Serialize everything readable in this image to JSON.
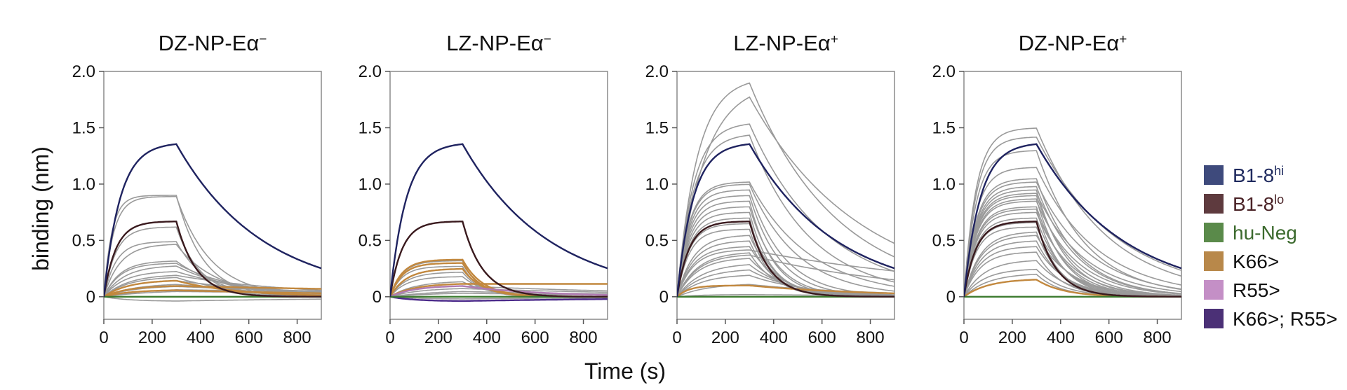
{
  "figure": {
    "ylabel": "binding (nm)",
    "xlabel": "Time (s)"
  },
  "chart_data": [
    {
      "type": "line",
      "title_main": "DZ-NP-Eα",
      "title_sup": "−",
      "xlim": [
        0,
        900
      ],
      "ylim": [
        -0.2,
        2.0
      ],
      "xticks": [
        "0",
        "200",
        "400",
        "600",
        "800"
      ],
      "yticks": [
        "0",
        "0.5",
        "1.0",
        "1.5",
        "2.0"
      ],
      "association_end_s": 300,
      "traces": [
        {
          "group": "B1-8hi",
          "plateau": 1.37,
          "kon": 0.015,
          "koff": 0.0028
        },
        {
          "group": "B1-8lo",
          "plateau": 0.67,
          "kon": 0.02,
          "koff": 0.012
        },
        {
          "group": "K66>",
          "plateau": 0.15,
          "kon": 0.01,
          "koff": 0.004
        },
        {
          "group": "K66>",
          "plateau": 0.1,
          "kon": 0.01,
          "koff": 0.0005
        },
        {
          "group": "K66>",
          "plateau": 0.06,
          "kon": 0.01,
          "koff": 0.001
        },
        {
          "group": "hu-Neg",
          "plateau": 0.0,
          "kon": 0.01,
          "koff": 0.001
        },
        {
          "group": "other",
          "plateau": 0.9,
          "kon": 0.03,
          "koff": 0.009
        },
        {
          "group": "other",
          "plateau": 0.89,
          "kon": 0.025,
          "koff": 0.007
        },
        {
          "group": "other",
          "plateau": 0.62,
          "kon": 0.02,
          "koff": 0.01
        },
        {
          "group": "other",
          "plateau": 0.49,
          "kon": 0.02,
          "koff": 0.008
        },
        {
          "group": "other",
          "plateau": 0.47,
          "kon": 0.015,
          "koff": 0.006
        },
        {
          "group": "other",
          "plateau": 0.32,
          "kon": 0.015,
          "koff": 0.005
        },
        {
          "group": "other",
          "plateau": 0.3,
          "kon": 0.015,
          "koff": 0.004
        },
        {
          "group": "other",
          "plateau": 0.28,
          "kon": 0.012,
          "koff": 0.004
        },
        {
          "group": "other",
          "plateau": 0.23,
          "kon": 0.012,
          "koff": 0.003
        },
        {
          "group": "other",
          "plateau": 0.2,
          "kon": 0.01,
          "koff": 0.002
        },
        {
          "group": "other",
          "plateau": 0.18,
          "kon": 0.01,
          "koff": 0.004
        },
        {
          "group": "other",
          "plateau": 0.15,
          "kon": 0.01,
          "koff": 0.002
        },
        {
          "group": "other",
          "plateau": 0.12,
          "kon": 0.008,
          "koff": 0.0015
        },
        {
          "group": "other",
          "plateau": 0.1,
          "kon": 0.008,
          "koff": 0.001
        },
        {
          "group": "other",
          "plateau": 0.08,
          "kon": 0.005,
          "koff": 0.0005
        },
        {
          "group": "other",
          "plateau": 0.06,
          "kon": 0.005,
          "koff": 0.0005
        },
        {
          "group": "other",
          "plateau": -0.04,
          "kon": 0.01,
          "koff": 0.001
        }
      ]
    },
    {
      "type": "line",
      "title_main": "LZ-NP-Eα",
      "title_sup": "−",
      "xlim": [
        0,
        900
      ],
      "ylim": [
        -0.2,
        2.0
      ],
      "xticks": [
        "0",
        "200",
        "400",
        "600",
        "800"
      ],
      "yticks": [
        "0",
        "0.5",
        "1.0",
        "1.5",
        "2.0"
      ],
      "association_end_s": 300,
      "traces": [
        {
          "group": "B1-8hi",
          "plateau": 1.37,
          "kon": 0.015,
          "koff": 0.0028
        },
        {
          "group": "B1-8lo",
          "plateau": 0.67,
          "kon": 0.02,
          "koff": 0.012
        },
        {
          "group": "K66>",
          "plateau": 0.33,
          "kon": 0.02,
          "koff": 0.012
        },
        {
          "group": "K66>",
          "plateau": 0.3,
          "kon": 0.02,
          "koff": 0.013
        },
        {
          "group": "K66>",
          "plateau": 0.25,
          "kon": 0.015,
          "koff": 0.012
        },
        {
          "group": "K66>",
          "plateau": 0.12,
          "kon": 0.01,
          "koff": 0.0
        },
        {
          "group": "R55>",
          "plateau": 0.1,
          "kon": 0.01,
          "koff": 0.003
        },
        {
          "group": "K66>; R55>",
          "plateau": -0.04,
          "kon": 0.01,
          "koff": 0.001
        },
        {
          "group": "hu-Neg",
          "plateau": 0.0,
          "kon": 0.01,
          "koff": 0.001
        },
        {
          "group": "other",
          "plateau": 0.32,
          "kon": 0.02,
          "koff": 0.015
        },
        {
          "group": "other",
          "plateau": 0.27,
          "kon": 0.02,
          "koff": 0.014
        },
        {
          "group": "other",
          "plateau": 0.22,
          "kon": 0.015,
          "koff": 0.012
        },
        {
          "group": "other",
          "plateau": 0.18,
          "kon": 0.015,
          "koff": 0.01
        },
        {
          "group": "other",
          "plateau": 0.14,
          "kon": 0.01,
          "koff": 0.008
        },
        {
          "group": "other",
          "plateau": 0.1,
          "kon": 0.01,
          "koff": 0.001
        },
        {
          "group": "other",
          "plateau": 0.08,
          "kon": 0.008,
          "koff": 0.001
        },
        {
          "group": "other",
          "plateau": 0.06,
          "kon": 0.005,
          "koff": 0.001
        },
        {
          "group": "other",
          "plateau": 0.04,
          "kon": 0.005,
          "koff": 0.001
        },
        {
          "group": "other",
          "plateau": -0.02,
          "kon": 0.01,
          "koff": 0.001
        }
      ]
    },
    {
      "type": "line",
      "title_main": "LZ-NP-Eα",
      "title_sup": "+",
      "xlim": [
        0,
        900
      ],
      "ylim": [
        -0.2,
        2.0
      ],
      "xticks": [
        "0",
        "200",
        "400",
        "600",
        "800"
      ],
      "yticks": [
        "0",
        "0.5",
        "1.0",
        "1.5",
        "2.0"
      ],
      "association_end_s": 300,
      "traces": [
        {
          "group": "B1-8hi",
          "plateau": 1.37,
          "kon": 0.015,
          "koff": 0.0028
        },
        {
          "group": "B1-8lo",
          "plateau": 0.67,
          "kon": 0.02,
          "koff": 0.012
        },
        {
          "group": "K66>",
          "plateau": 0.1,
          "kon": 0.02,
          "koff": 0.002
        },
        {
          "group": "hu-Neg",
          "plateau": 0.0,
          "kon": 0.01,
          "koff": 0.001
        },
        {
          "group": "other",
          "plateau": 1.95,
          "kon": 0.012,
          "koff": 0.0028
        },
        {
          "group": "other",
          "plateau": 1.9,
          "kon": 0.009,
          "koff": 0.0022
        },
        {
          "group": "other",
          "plateau": 1.55,
          "kon": 0.015,
          "koff": 0.0032
        },
        {
          "group": "other",
          "plateau": 1.45,
          "kon": 0.015,
          "koff": 0.004
        },
        {
          "group": "other",
          "plateau": 1.02,
          "kon": 0.02,
          "koff": 0.004
        },
        {
          "group": "other",
          "plateau": 1.0,
          "kon": 0.02,
          "koff": 0.005
        },
        {
          "group": "other",
          "plateau": 0.95,
          "kon": 0.02,
          "koff": 0.007
        },
        {
          "group": "other",
          "plateau": 0.9,
          "kon": 0.02,
          "koff": 0.008
        },
        {
          "group": "other",
          "plateau": 0.85,
          "kon": 0.02,
          "koff": 0.01
        },
        {
          "group": "other",
          "plateau": 0.8,
          "kon": 0.02,
          "koff": 0.009
        },
        {
          "group": "other",
          "plateau": 0.75,
          "kon": 0.02,
          "koff": 0.011
        },
        {
          "group": "other",
          "plateau": 0.7,
          "kon": 0.02,
          "koff": 0.012
        },
        {
          "group": "other",
          "plateau": 0.65,
          "kon": 0.02,
          "koff": 0.01
        },
        {
          "group": "other",
          "plateau": 0.6,
          "kon": 0.02,
          "koff": 0.012
        },
        {
          "group": "other",
          "plateau": 0.55,
          "kon": 0.015,
          "koff": 0.009
        },
        {
          "group": "other",
          "plateau": 0.5,
          "kon": 0.015,
          "koff": 0.01
        },
        {
          "group": "other",
          "plateau": 0.45,
          "kon": 0.015,
          "koff": 0.008
        },
        {
          "group": "other",
          "plateau": 0.42,
          "kon": 0.015,
          "koff": 0.001
        },
        {
          "group": "other",
          "plateau": 0.4,
          "kon": 0.012,
          "koff": 0.009
        },
        {
          "group": "other",
          "plateau": 0.38,
          "kon": 0.012,
          "koff": 0.0015
        },
        {
          "group": "other",
          "plateau": 0.35,
          "kon": 0.012,
          "koff": 0.007
        },
        {
          "group": "other",
          "plateau": 0.3,
          "kon": 0.01,
          "koff": 0.006
        },
        {
          "group": "other",
          "plateau": 0.25,
          "kon": 0.01,
          "koff": 0.005
        },
        {
          "group": "other",
          "plateau": 0.2,
          "kon": 0.01,
          "koff": 0.004
        },
        {
          "group": "other",
          "plateau": 0.12,
          "kon": 0.008,
          "koff": 0.002
        },
        {
          "group": "other",
          "plateau": 0.02,
          "kon": 0.01,
          "koff": 0.001
        }
      ]
    },
    {
      "type": "line",
      "title_main": "DZ-NP-Eα",
      "title_sup": "+",
      "xlim": [
        0,
        900
      ],
      "ylim": [
        -0.2,
        2.0
      ],
      "xticks": [
        "0",
        "200",
        "400",
        "600",
        "800"
      ],
      "yticks": [
        "0",
        "0.5",
        "1.0",
        "1.5",
        "2.0"
      ],
      "association_end_s": 300,
      "traces": [
        {
          "group": "B1-8hi",
          "plateau": 1.37,
          "kon": 0.015,
          "koff": 0.0028
        },
        {
          "group": "B1-8lo",
          "plateau": 0.67,
          "kon": 0.02,
          "koff": 0.012
        },
        {
          "group": "K66>",
          "plateau": 0.16,
          "kon": 0.01,
          "koff": 0.009
        },
        {
          "group": "hu-Neg",
          "plateau": 0.0,
          "kon": 0.01,
          "koff": 0.001
        },
        {
          "group": "other",
          "plateau": 1.5,
          "kon": 0.02,
          "koff": 0.0035
        },
        {
          "group": "other",
          "plateau": 1.42,
          "kon": 0.02,
          "koff": 0.003
        },
        {
          "group": "other",
          "plateau": 1.3,
          "kon": 0.02,
          "koff": 0.005
        },
        {
          "group": "other",
          "plateau": 1.15,
          "kon": 0.02,
          "koff": 0.004
        },
        {
          "group": "other",
          "plateau": 1.05,
          "kon": 0.02,
          "koff": 0.006
        },
        {
          "group": "other",
          "plateau": 1.02,
          "kon": 0.02,
          "koff": 0.0045
        },
        {
          "group": "other",
          "plateau": 0.98,
          "kon": 0.02,
          "koff": 0.006
        },
        {
          "group": "other",
          "plateau": 0.95,
          "kon": 0.02,
          "koff": 0.008
        },
        {
          "group": "other",
          "plateau": 0.92,
          "kon": 0.02,
          "koff": 0.005
        },
        {
          "group": "other",
          "plateau": 0.9,
          "kon": 0.02,
          "koff": 0.007
        },
        {
          "group": "other",
          "plateau": 0.87,
          "kon": 0.02,
          "koff": 0.009
        },
        {
          "group": "other",
          "plateau": 0.85,
          "kon": 0.02,
          "koff": 0.006
        },
        {
          "group": "other",
          "plateau": 0.8,
          "kon": 0.02,
          "koff": 0.008
        },
        {
          "group": "other",
          "plateau": 0.78,
          "kon": 0.02,
          "koff": 0.01
        },
        {
          "group": "other",
          "plateau": 0.75,
          "kon": 0.02,
          "koff": 0.007
        },
        {
          "group": "other",
          "plateau": 0.7,
          "kon": 0.02,
          "koff": 0.009
        },
        {
          "group": "other",
          "plateau": 0.66,
          "kon": 0.02,
          "koff": 0.011
        },
        {
          "group": "other",
          "plateau": 0.62,
          "kon": 0.02,
          "koff": 0.008
        },
        {
          "group": "other",
          "plateau": 0.58,
          "kon": 0.015,
          "koff": 0.01
        },
        {
          "group": "other",
          "plateau": 0.55,
          "kon": 0.015,
          "koff": 0.007
        },
        {
          "group": "other",
          "plateau": 0.5,
          "kon": 0.015,
          "koff": 0.009
        },
        {
          "group": "other",
          "plateau": 0.45,
          "kon": 0.015,
          "koff": 0.008
        },
        {
          "group": "other",
          "plateau": 0.4,
          "kon": 0.015,
          "koff": 0.01
        },
        {
          "group": "other",
          "plateau": 0.33,
          "kon": 0.012,
          "koff": 0.008
        },
        {
          "group": "other",
          "plateau": 0.25,
          "kon": 0.012,
          "koff": 0.009
        },
        {
          "group": "other",
          "plateau": 0.21,
          "kon": 0.01,
          "koff": 0.01
        }
      ]
    }
  ],
  "legend": {
    "position": "right",
    "items": [
      {
        "key": "B1-8hi",
        "label": "B1-8",
        "sup": "hi",
        "color": "#3e4a7c",
        "text_color": "#1f2a5e"
      },
      {
        "key": "B1-8lo",
        "label": "B1-8",
        "sup": "lo",
        "color": "#5e3a3e",
        "text_color": "#4a2226"
      },
      {
        "key": "hu-Neg",
        "label": "hu-Neg",
        "sup": "",
        "color": "#5a8a4a",
        "text_color": "#3c6a2e"
      },
      {
        "key": "K66>",
        "label": "K66>",
        "sup": "",
        "color": "#b8884a",
        "text_color": "#111111"
      },
      {
        "key": "R55>",
        "label": "R55>",
        "sup": "",
        "color": "#c48fc6",
        "text_color": "#111111"
      },
      {
        "key": "K66>; R55>",
        "label": "K66>; R55>",
        "sup": "",
        "color": "#4b3076",
        "text_color": "#111111"
      }
    ]
  },
  "colors": {
    "other": "#9a9a9a",
    "B1-8hi_line": "#1f2360",
    "B1-8lo_line": "#3a1a1e",
    "hu-Neg_line": "#3c7a2e",
    "K66>_line": "#c2883e",
    "R55>_line": "#b07ab2",
    "K66>; R55>_line": "#4b2a8a"
  }
}
